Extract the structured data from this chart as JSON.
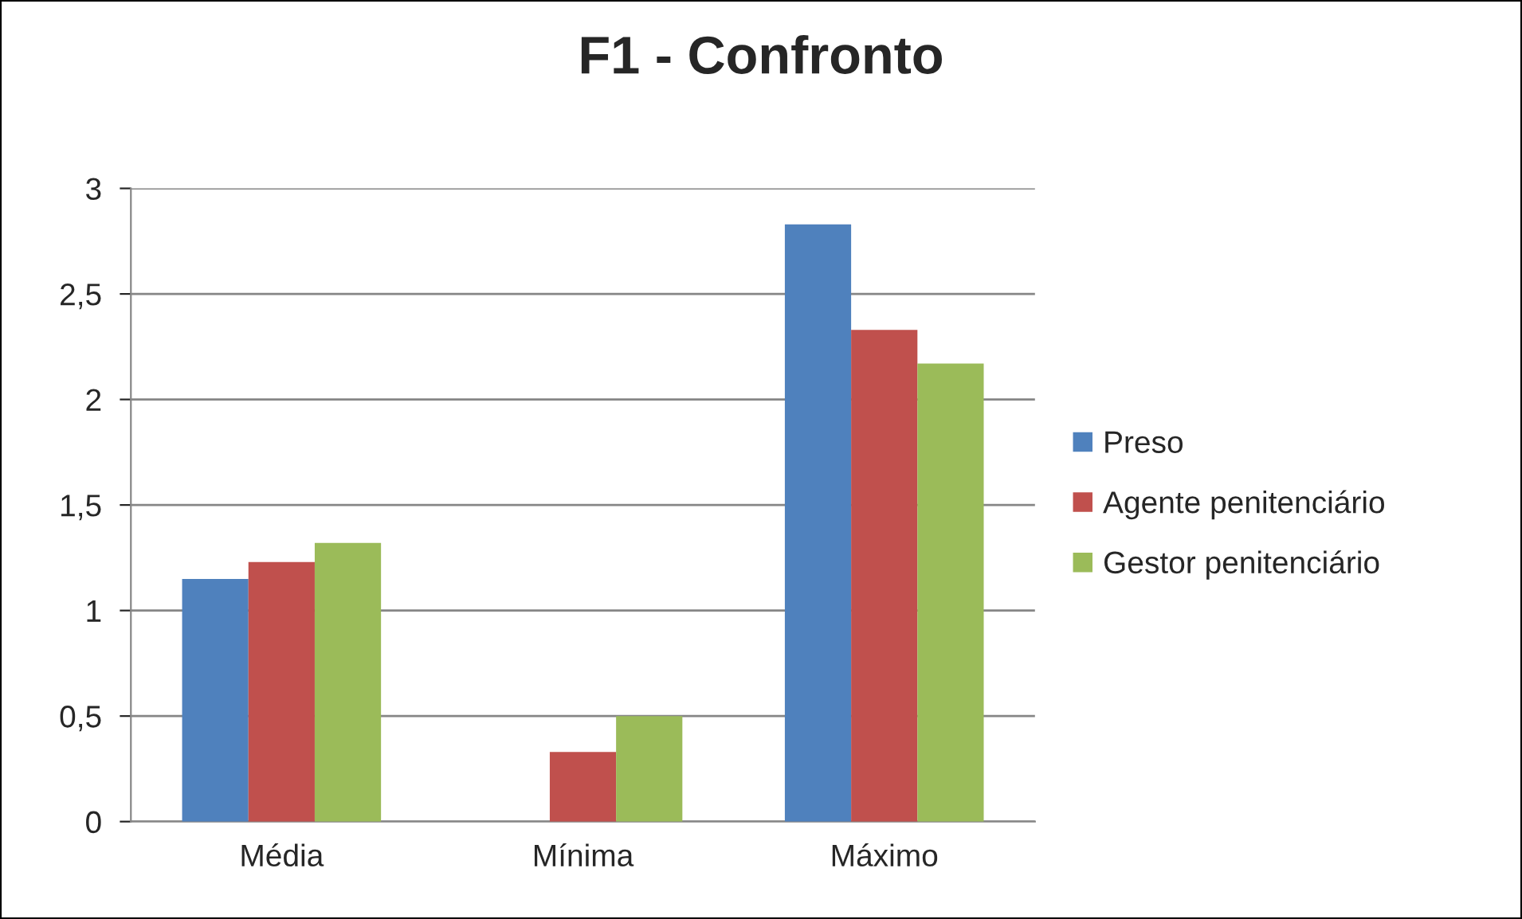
{
  "chart_data": {
    "type": "bar",
    "title": "F1 - Confronto",
    "categories": [
      "Média",
      "Mínima",
      "Máximo"
    ],
    "series": [
      {
        "name": "Preso",
        "color": "#4f81bd",
        "values": [
          1.15,
          0,
          2.83
        ]
      },
      {
        "name": "Agente penitenciário",
        "color": "#c0504d",
        "values": [
          1.23,
          0.33,
          2.33
        ]
      },
      {
        "name": "Gestor penitenciário",
        "color": "#9bbb59",
        "values": [
          1.32,
          0.5,
          2.17
        ]
      }
    ],
    "ylim": [
      0,
      3
    ],
    "yticks": [
      0,
      {
        "value": 0.5,
        "label": "0,5"
      },
      1,
      {
        "value": 1.5,
        "label": "1,5"
      },
      2,
      {
        "value": 2.5,
        "label": "2,5"
      },
      3
    ],
    "grid": "y",
    "legend": "right"
  }
}
